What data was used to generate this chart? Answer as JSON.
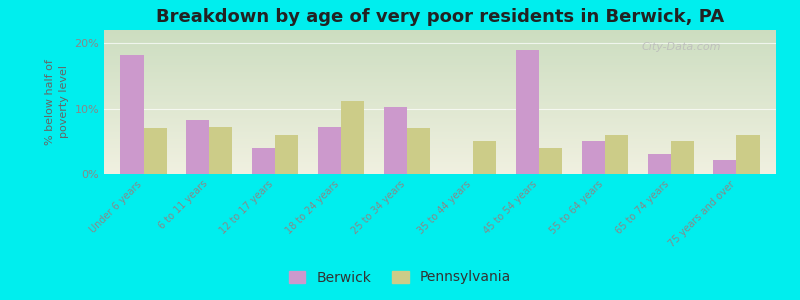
{
  "categories": [
    "Under 6 years",
    "6 to 11 years",
    "12 to 17 years",
    "18 to 24 years",
    "25 to 34 years",
    "35 to 44 years",
    "45 to 54 years",
    "55 to 64 years",
    "65 to 74 years",
    "75 years and over"
  ],
  "berwick": [
    18.2,
    8.2,
    4.0,
    7.2,
    10.2,
    0.0,
    19.0,
    5.0,
    3.0,
    2.2
  ],
  "pennsylvania": [
    7.0,
    7.2,
    6.0,
    11.2,
    7.0,
    5.0,
    4.0,
    6.0,
    5.0,
    6.0
  ],
  "berwick_color": "#cc99cc",
  "pennsylvania_color": "#cccc88",
  "background_color": "#00eeee",
  "plot_bg_top": "#ccddc0",
  "plot_bg_bottom": "#f0f0e0",
  "title": "Breakdown by age of very poor residents in Berwick, PA",
  "ylabel": "% below half of\npoverty level",
  "ylim": [
    0,
    22
  ],
  "yticks": [
    0,
    10,
    20
  ],
  "ytick_labels": [
    "0%",
    "10%",
    "20%"
  ],
  "bar_width": 0.35,
  "title_fontsize": 13,
  "label_fontsize": 7,
  "tick_color": "#888888",
  "legend_labels": [
    "Berwick",
    "Pennsylvania"
  ],
  "watermark": "City-Data.com"
}
